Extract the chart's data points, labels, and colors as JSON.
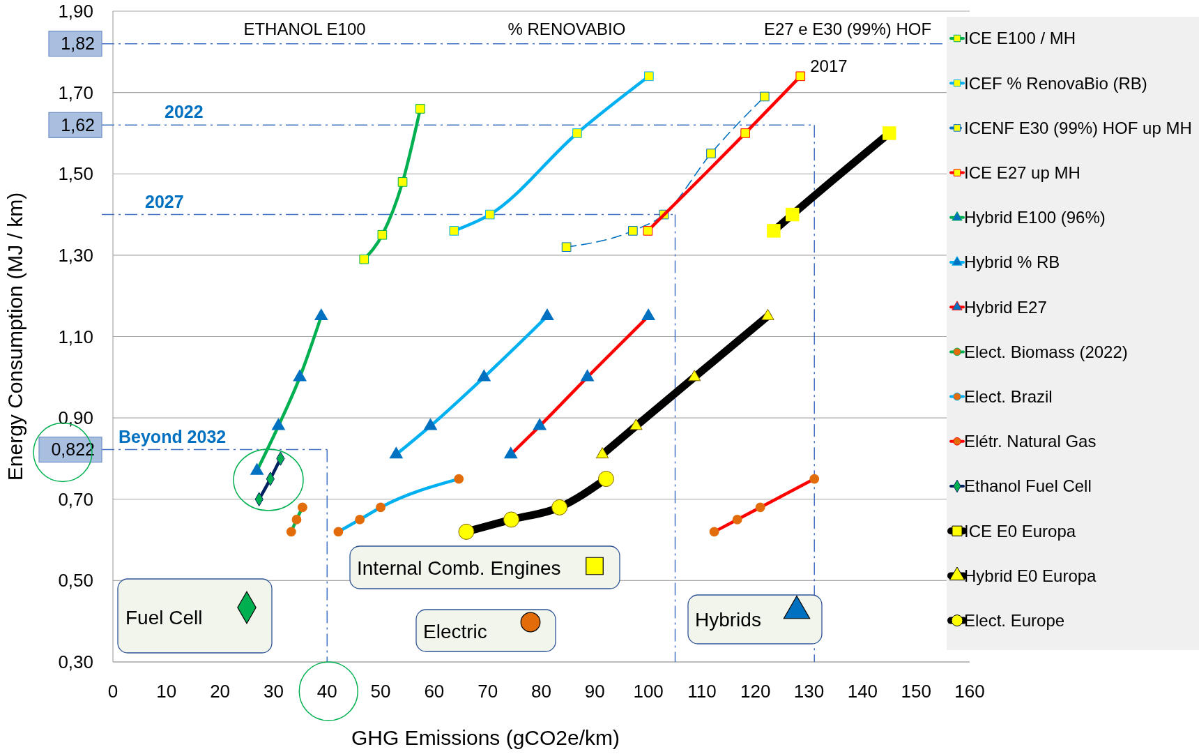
{
  "chart_data": {
    "type": "line",
    "xlabel": "GHG Emissions (gCO2e/km)",
    "ylabel": "Energy Consumption (MJ / km)",
    "xlim": [
      0,
      160
    ],
    "xticks": [
      0,
      10,
      20,
      30,
      40,
      50,
      60,
      70,
      80,
      90,
      100,
      110,
      120,
      130,
      140,
      150,
      160
    ],
    "ylim": [
      0.3,
      1.9
    ],
    "yticks": [
      {
        "value": 0.3,
        "label": "0,30"
      },
      {
        "value": 0.5,
        "label": "0,50"
      },
      {
        "value": 0.7,
        "label": "0,70"
      },
      {
        "value": 0.9,
        "label": "0,90"
      },
      {
        "value": 1.1,
        "label": "1,10"
      },
      {
        "value": 1.3,
        "label": "1,30"
      },
      {
        "value": 1.5,
        "label": "1,50"
      },
      {
        "value": 1.7,
        "label": "1,70"
      },
      {
        "value": 1.9,
        "label": "1,90"
      }
    ],
    "grid": "y",
    "legend": "right",
    "series": [
      {
        "name": "ICE E100 / MH",
        "color": "#00b050",
        "marker": "square",
        "x": [
          46.9,
          50.3,
          54.1,
          57.4
        ],
        "values": [
          1.29,
          1.35,
          1.48,
          1.66
        ],
        "colors": [
          "#ffff00",
          "#ffff00",
          "#ffff00",
          "#ffff00"
        ]
      },
      {
        "name": "ICEF % RenovaBio (RB)",
        "color": "#00b0f0",
        "marker": "square",
        "x": [
          63.7,
          70.4,
          86.7,
          100.1
        ],
        "values": [
          1.36,
          1.4,
          1.6,
          1.74
        ],
        "colors": [
          "#ffff00",
          "#ffff00",
          "#ffff00",
          "#ffff00"
        ]
      },
      {
        "name": "ICENF E30 (99%) HOF up MH",
        "color": "#0070c0",
        "marker": "square",
        "line_style": "dashed",
        "x": [
          84.7,
          97.1,
          102.9,
          111.7,
          121.7
        ],
        "values": [
          1.32,
          1.36,
          1.4,
          1.55,
          1.69
        ],
        "colors": [
          "#ffff00",
          "#ffff00",
          "#ffff00",
          "#ffff00",
          "#ffff00"
        ]
      },
      {
        "name": "ICE E27 up MH",
        "color": "#ff0000",
        "marker": "square",
        "x": [
          99.9,
          118.1,
          128.4
        ],
        "values": [
          1.36,
          1.6,
          1.74
        ],
        "colors": [
          "#ffff00",
          "#ffff00",
          "#ffff00"
        ]
      },
      {
        "name": "Hybrid E100 (96%)",
        "color": "#00b050",
        "marker": "triangle",
        "x": [
          26.9,
          30.9,
          34.9,
          38.9
        ],
        "values": [
          0.77,
          0.88,
          1.0,
          1.15
        ],
        "colors": [
          "#0070c0",
          "#0070c0",
          "#0070c0",
          "#0070c0"
        ]
      },
      {
        "name": "Hybrid % RB",
        "color": "#00b0f0",
        "marker": "triangle",
        "x": [
          52.9,
          59.3,
          69.3,
          81.1
        ],
        "values": [
          0.81,
          0.88,
          1.0,
          1.15
        ],
        "colors": [
          "#0070c0",
          "#0070c0",
          "#0070c0",
          "#0070c0"
        ]
      },
      {
        "name": "Hybrid E27",
        "color": "#ff0000",
        "marker": "triangle",
        "x": [
          74.3,
          79.7,
          88.6,
          100
        ],
        "values": [
          0.81,
          0.88,
          1.0,
          1.15
        ],
        "colors": [
          "#0070c0",
          "#0070c0",
          "#0070c0",
          "#0070c0"
        ]
      },
      {
        "name": "Elect. Biomass (2022)",
        "color": "#00b050",
        "marker": "circle",
        "x": [
          33.3,
          34.3,
          35.4
        ],
        "values": [
          0.62,
          0.65,
          0.68
        ],
        "colors": [
          "#e36c0a",
          "#e36c0a",
          "#e36c0a"
        ]
      },
      {
        "name": "Elect. Brazil",
        "color": "#00b0f0",
        "marker": "circle",
        "x": [
          42.1,
          46.1,
          50,
          64.6
        ],
        "values": [
          0.62,
          0.65,
          0.68,
          0.75
        ],
        "colors": [
          "#e36c0a",
          "#e36c0a",
          "#e36c0a",
          "#e36c0a"
        ]
      },
      {
        "name": "Elétr. Natural Gas",
        "color": "#ff0000",
        "marker": "circle",
        "x": [
          112.3,
          116.6,
          120.9,
          131
        ],
        "values": [
          0.62,
          0.65,
          0.68,
          0.75
        ],
        "colors": [
          "#e36c0a",
          "#e36c0a",
          "#e36c0a",
          "#e36c0a"
        ]
      },
      {
        "name": "Ethanol Fuel Cell",
        "color": "#002060",
        "marker": "diamond",
        "x": [
          27.3,
          29.4,
          31.3
        ],
        "values": [
          0.7,
          0.75,
          0.8
        ],
        "colors": [
          "#00b050",
          "#00b050",
          "#00b050"
        ]
      },
      {
        "name": "ICE E0 Europa",
        "color": "#000000",
        "marker": "square",
        "x": [
          123.4,
          126.9,
          145
        ],
        "values": [
          1.36,
          1.4,
          1.6
        ],
        "colors": [
          "#ffff00",
          "#ffff00",
          "#ffff00"
        ]
      },
      {
        "name": "Hybrid E0 Europa",
        "color": "#000000",
        "marker": "triangle",
        "x": [
          91.4,
          97.7,
          108.6,
          122.3
        ],
        "values": [
          0.81,
          0.88,
          1.0,
          1.15
        ],
        "colors": [
          "#ffff00",
          "#ffff00",
          "#ffff00",
          "#ffff00"
        ]
      },
      {
        "name": "Elect. Europe",
        "color": "#000000",
        "marker": "circle",
        "x": [
          66,
          74.4,
          83.4,
          92.1
        ],
        "values": [
          0.62,
          0.65,
          0.68,
          0.75
        ],
        "colors": [
          "#ffff00",
          "#ffff00",
          "#ffff00",
          "#ffff00"
        ]
      }
    ],
    "ref_lines": [
      {
        "axis": "y",
        "value": 1.82,
        "label": null,
        "color": "#4472c4",
        "line_style": "dashdot"
      },
      {
        "axis": "y",
        "value": 1.62,
        "label": null,
        "color": "#4472c4",
        "line_style": "dashdot"
      },
      {
        "axis": "y",
        "value": 1.4,
        "label": null,
        "color": "#4472c4",
        "line_style": "dashdot"
      },
      {
        "axis": "y",
        "value": 0.822,
        "label": null,
        "color": "#4472c4",
        "line_style": "dashdot"
      },
      {
        "axis": "x",
        "value": 131,
        "label": null,
        "color": "#4472c4",
        "line_style": "dashdot"
      },
      {
        "axis": "x",
        "value": 105,
        "label": null,
        "color": "#4472c4",
        "line_style": "dashdot"
      },
      {
        "axis": "x",
        "value": 40,
        "label": null,
        "color": "#4472c4",
        "line_style": "dashdot"
      }
    ],
    "annotations": [
      "ETHANOL E100",
      "% RENOVABIO",
      "E27 e E30 (99%) HOF",
      {
        "text": "2017",
        "x": 128.4,
        "y": 1.74
      },
      "1,82",
      "1,62",
      "0,822",
      "2022",
      "2027",
      "Beyond 2032",
      "Fuel Cell",
      "Internal Comb. Engines",
      "Electric",
      "Hybrids"
    ]
  }
}
